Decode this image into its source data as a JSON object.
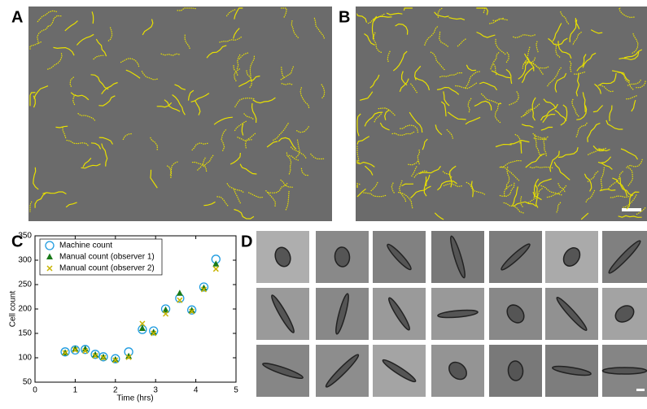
{
  "panels": [
    "A",
    "B",
    "C",
    "D"
  ],
  "chart_data": {
    "type": "scatter",
    "xlabel": "Time (hrs)",
    "ylabel": "Cell count",
    "x": [
      0.75,
      1.0,
      1.25,
      1.5,
      1.7,
      2.0,
      2.33,
      2.67,
      2.95,
      3.25,
      3.6,
      3.9,
      4.2,
      4.5
    ],
    "series": [
      {
        "name": "Machine count",
        "color": "#1e9be0",
        "marker": "circle",
        "values": [
          112,
          116,
          117,
          107,
          102,
          98,
          112,
          158,
          155,
          200,
          222,
          198,
          245,
          302
        ]
      },
      {
        "name": "Manual count (observer 1)",
        "color": "#1a7a1a",
        "marker": "triangle",
        "values": [
          110,
          118,
          118,
          106,
          101,
          96,
          103,
          160,
          152,
          198,
          232,
          197,
          243,
          292
        ]
      },
      {
        "name": "Manual count (observer 2)",
        "color": "#c8b400",
        "marker": "x",
        "values": [
          110,
          116,
          114,
          104,
          100,
          95,
          101,
          170,
          150,
          190,
          218,
          195,
          240,
          282
        ]
      }
    ],
    "xlim": [
      0,
      5
    ],
    "xticks": [
      0,
      1,
      2,
      3,
      4,
      5
    ],
    "ylim": [
      50,
      350
    ],
    "yticks": [
      50,
      100,
      150,
      200,
      250,
      300,
      350
    ],
    "legend": "upper-left",
    "grid": false
  }
}
